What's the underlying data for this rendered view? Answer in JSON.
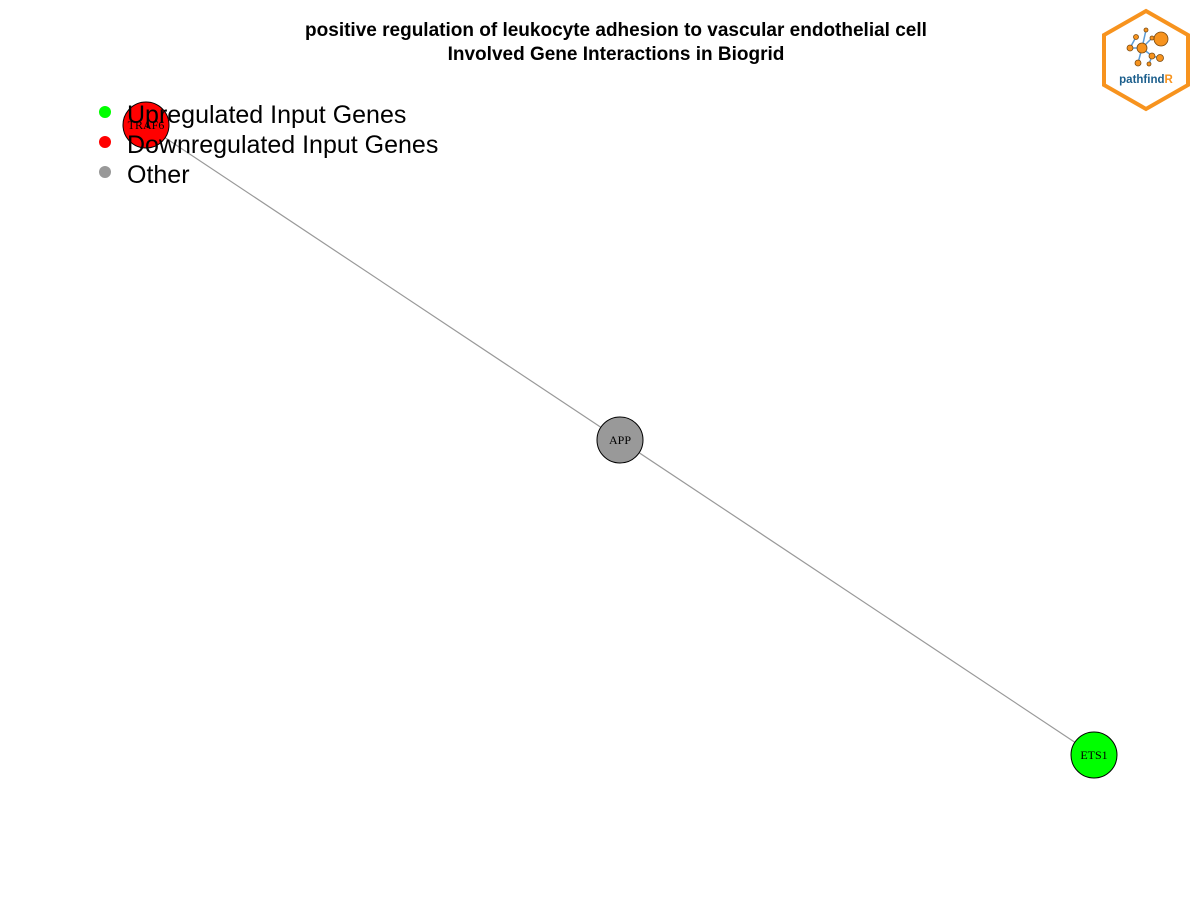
{
  "title": {
    "line1": "positive regulation of leukocyte adhesion to vascular endothelial cell",
    "line2": "Involved Gene Interactions in Biogrid"
  },
  "legend": {
    "items": [
      {
        "label": "Upregulated Input Genes",
        "color": "#00ff00"
      },
      {
        "label": "Downregulated Input Genes",
        "color": "#ff0000"
      },
      {
        "label": "Other",
        "color": "#999999"
      }
    ]
  },
  "network": {
    "nodes": [
      {
        "id": "TRAF6",
        "label": "TRAF6",
        "group": "downregulated",
        "color": "#ff0000"
      },
      {
        "id": "APP",
        "label": "APP",
        "group": "other",
        "color": "#999999"
      },
      {
        "id": "ETS1",
        "label": "ETS1",
        "group": "upregulated",
        "color": "#00ff00"
      }
    ],
    "edges": [
      {
        "source": "TRAF6",
        "target": "APP"
      },
      {
        "source": "APP",
        "target": "ETS1"
      }
    ],
    "edge_color": "#999999"
  },
  "logo": {
    "text_main": "pathfind",
    "text_accent": "R",
    "border_color": "#f7931e",
    "text_color": "#1b5e8c",
    "accent_color": "#f7931e"
  }
}
